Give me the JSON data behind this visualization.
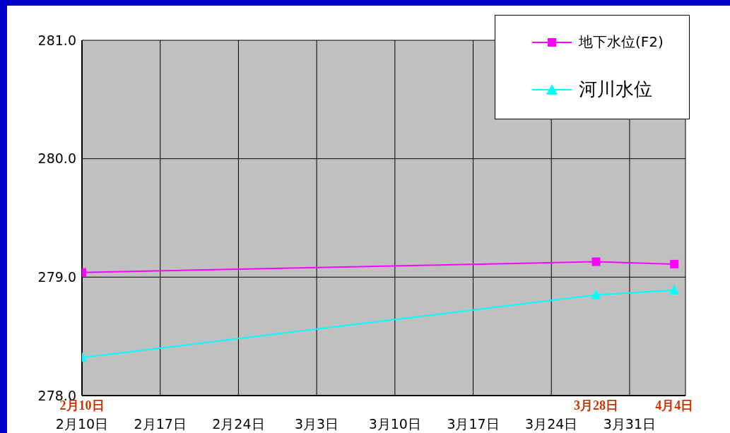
{
  "chart_data": {
    "type": "line",
    "x": [
      "--02-10",
      "--03-28",
      "--04-04"
    ],
    "series": [
      {
        "name": "地下水位(F2)",
        "color": "#ff00ff",
        "marker": "square",
        "values": [
          279.04,
          279.13,
          279.11
        ]
      },
      {
        "name": "河川水位",
        "color": "#00ffff",
        "marker": "triangle",
        "values": [
          278.32,
          278.85,
          278.89
        ]
      }
    ],
    "xlim": [
      "--02-10",
      "--04-05"
    ],
    "xticks": [
      {
        "value": "--02-10",
        "label": "2月10日"
      },
      {
        "value": "--02-17",
        "label": "2月17日"
      },
      {
        "value": "--02-24",
        "label": "2月24日"
      },
      {
        "value": "--03-03",
        "label": "3月3日"
      },
      {
        "value": "--03-10",
        "label": "3月10日"
      },
      {
        "value": "--03-17",
        "label": "3月17日"
      },
      {
        "value": "--03-24",
        "label": "3月24日"
      },
      {
        "value": "--03-31",
        "label": "3月31日"
      }
    ],
    "ylim": [
      278,
      281
    ],
    "yticks": [
      {
        "value": 278,
        "label": "278.0"
      },
      {
        "value": 279,
        "label": "279.0"
      },
      {
        "value": 280,
        "label": "280.0"
      },
      {
        "value": 281,
        "label": "281.0"
      }
    ],
    "grid": true,
    "legend": "top right",
    "line_style": "solid",
    "annotations": [
      "2月10日",
      "3月28日",
      "4月4日"
    ]
  }
}
